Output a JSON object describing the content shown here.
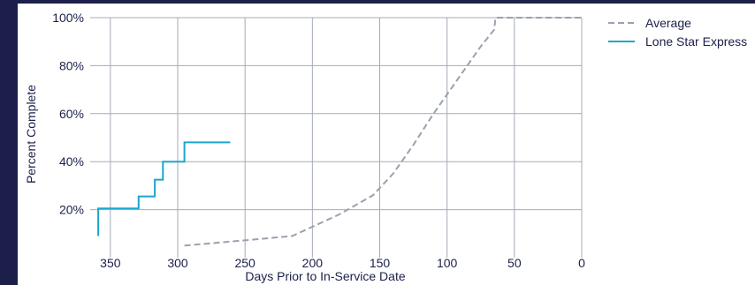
{
  "chart_data": {
    "type": "line",
    "title": "",
    "xlabel": "Days Prior to In-Service Date",
    "ylabel": "Percent Complete",
    "xlim": [
      365,
      0
    ],
    "ylim": [
      0,
      100
    ],
    "x_reversed": true,
    "x_ticks": [
      350,
      300,
      250,
      200,
      150,
      100,
      50,
      0
    ],
    "x_tick_labels": [
      "350",
      "300",
      "250",
      "200",
      "150",
      "100",
      "50",
      "0"
    ],
    "y_ticks": [
      20,
      40,
      60,
      80,
      100
    ],
    "y_tick_labels": [
      "20%",
      "40%",
      "60%",
      "80%",
      "100%"
    ],
    "grid": true,
    "legend_position": "top-right",
    "series": [
      {
        "name": "Average",
        "style": "dashed",
        "color": "#9aa1ad",
        "x": [
          295,
          255,
          215,
          180,
          155,
          140,
          125,
          110,
          95,
          85,
          75,
          65,
          64,
          0
        ],
        "y": [
          5,
          7,
          9,
          18,
          26,
          35,
          47,
          60,
          72,
          80,
          88,
          95,
          100,
          100
        ]
      },
      {
        "name": "Lone Star Express",
        "style": "step",
        "color": "#1aa7cc",
        "x": [
          359,
          359,
          329,
          329,
          317,
          317,
          311,
          311,
          295,
          295,
          261
        ],
        "y": [
          9,
          20.5,
          20.5,
          25.5,
          25.5,
          32.5,
          32.5,
          40,
          40,
          48,
          48
        ]
      }
    ]
  }
}
